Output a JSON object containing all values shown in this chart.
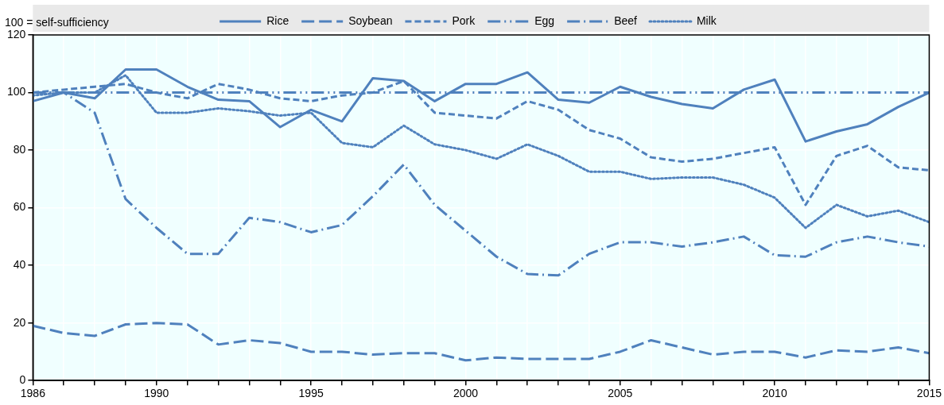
{
  "chart_data": {
    "type": "line",
    "ylabel": "100 = self-sufficiency",
    "x": [
      1986,
      1987,
      1988,
      1989,
      1990,
      1991,
      1992,
      1993,
      1994,
      1995,
      1996,
      1997,
      1998,
      1999,
      2000,
      2001,
      2002,
      2003,
      2004,
      2005,
      2006,
      2007,
      2008,
      2009,
      2010,
      2011,
      2012,
      2013,
      2014,
      2015
    ],
    "series": [
      {
        "name": "Rice",
        "color": "#4f81bd",
        "line_style": "solid",
        "values": [
          97,
          100,
          98,
          108,
          108,
          102,
          97.5,
          97,
          88,
          94,
          90,
          105,
          104,
          97,
          103,
          103,
          107,
          97.5,
          96.5,
          102,
          98.5,
          96,
          94.5,
          101,
          104.5,
          83,
          86.5,
          89,
          95,
          100
        ]
      },
      {
        "name": "Soybean",
        "color": "#4f81bd",
        "line_style": "longdash",
        "values": [
          19,
          16.5,
          15.5,
          19.5,
          20,
          19.5,
          12.5,
          14,
          13,
          10,
          10,
          9,
          9.5,
          9.5,
          7,
          8,
          7.5,
          7.5,
          7.5,
          10,
          14,
          11.5,
          9,
          10,
          10,
          8,
          10.5,
          10,
          11.5,
          9.5
        ]
      },
      {
        "name": "Pork",
        "color": "#4f81bd",
        "line_style": "dashed",
        "values": [
          100,
          101,
          102,
          103,
          100,
          98,
          103,
          101,
          98,
          97,
          99,
          100,
          104,
          93,
          92,
          91,
          97,
          94,
          87,
          84,
          77.5,
          76,
          77,
          79,
          81,
          61,
          78,
          81.5,
          74,
          73
        ]
      },
      {
        "name": "Egg",
        "color": "#4f81bd",
        "line_style": "dashdotdot",
        "values": [
          100,
          100,
          100,
          100,
          100,
          100,
          100,
          100,
          100,
          100,
          100,
          100,
          100,
          100,
          100,
          100,
          100,
          100,
          100,
          100,
          100,
          100,
          100,
          100,
          100,
          100,
          100,
          100,
          100,
          100
        ]
      },
      {
        "name": "Beef",
        "color": "#4f81bd",
        "line_style": "dashdot",
        "values": [
          100,
          100,
          93,
          63,
          53,
          44,
          44,
          56.5,
          55,
          51.5,
          54,
          64,
          75,
          61,
          52,
          43,
          37,
          36.5,
          44,
          48,
          48,
          46.5,
          48,
          50,
          43.5,
          43,
          48,
          50,
          48,
          46.5
        ]
      },
      {
        "name": "Milk",
        "color": "#4f81bd",
        "line_style": "dotted",
        "values": [
          99,
          100,
          100,
          106,
          93,
          93,
          94.5,
          93.5,
          92,
          93,
          82.5,
          81,
          88.5,
          82,
          80,
          77,
          82,
          78,
          72.5,
          72.5,
          70,
          70.5,
          70.5,
          68,
          63.5,
          53,
          61,
          57,
          59,
          55
        ]
      }
    ],
    "xlim": [
      1986,
      2015
    ],
    "xticks": [
      1986,
      {
        "value": 1987,
        "label": null
      },
      {
        "value": 1988,
        "label": null
      },
      {
        "value": 1989,
        "label": null
      },
      1990,
      {
        "value": 1991,
        "label": null
      },
      {
        "value": 1992,
        "label": null
      },
      {
        "value": 1993,
        "label": null
      },
      {
        "value": 1994,
        "label": null
      },
      1995,
      {
        "value": 1996,
        "label": null
      },
      {
        "value": 1997,
        "label": null
      },
      {
        "value": 1998,
        "label": null
      },
      {
        "value": 1999,
        "label": null
      },
      2000,
      {
        "value": 2001,
        "label": null
      },
      {
        "value": 2002,
        "label": null
      },
      {
        "value": 2003,
        "label": null
      },
      {
        "value": 2004,
        "label": null
      },
      2005,
      {
        "value": 2006,
        "label": null
      },
      {
        "value": 2007,
        "label": null
      },
      {
        "value": 2008,
        "label": null
      },
      {
        "value": 2009,
        "label": null
      },
      2010,
      {
        "value": 2011,
        "label": null
      },
      {
        "value": 2012,
        "label": null
      },
      {
        "value": 2013,
        "label": null
      },
      {
        "value": 2014,
        "label": null
      },
      2015
    ],
    "ylim": [
      0,
      120
    ],
    "yticks": [
      0,
      20,
      40,
      60,
      80,
      100,
      120
    ],
    "grid": true,
    "legend": "top",
    "marker": "none"
  }
}
